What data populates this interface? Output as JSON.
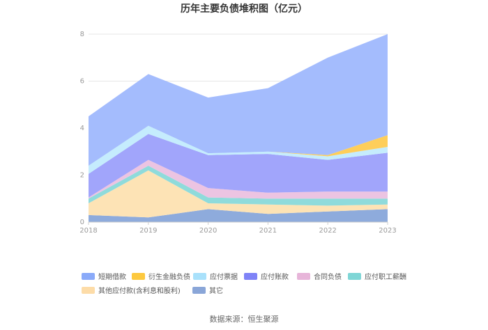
{
  "chart_data": {
    "type": "area",
    "stacked": true,
    "title": "历年主要负债堆积图（亿元）",
    "x": [
      "2018",
      "2019",
      "2020",
      "2021",
      "2022",
      "2023"
    ],
    "ylim": [
      0,
      8
    ],
    "yticks": [
      "0",
      "2",
      "4",
      "6",
      "8"
    ],
    "grid": true,
    "legend_position": "bottom",
    "series": [
      {
        "name": "其它",
        "color": "#8eabdc",
        "values": [
          0.3,
          0.2,
          0.55,
          0.35,
          0.45,
          0.55
        ]
      },
      {
        "name": "其他应付款(含利息和股利)",
        "color": "#fde3b5",
        "values": [
          0.5,
          2.0,
          0.25,
          0.4,
          0.25,
          0.2
        ]
      },
      {
        "name": "应付职工薪酬",
        "color": "#8fdbdb",
        "values": [
          0.2,
          0.2,
          0.25,
          0.25,
          0.3,
          0.25
        ]
      },
      {
        "name": "合同负债",
        "color": "#ecc4e2",
        "values": [
          0.05,
          0.25,
          0.4,
          0.25,
          0.3,
          0.3
        ]
      },
      {
        "name": "应付账款",
        "color": "#a1a5fb",
        "values": [
          1.0,
          1.1,
          1.4,
          1.65,
          1.35,
          1.65
        ]
      },
      {
        "name": "应付票据",
        "color": "#c5ecfd",
        "values": [
          0.35,
          0.35,
          0.08,
          0.1,
          0.15,
          0.25
        ]
      },
      {
        "name": "衍生金融负债",
        "color": "#fece5a",
        "values": [
          0.0,
          0.0,
          0.0,
          0.0,
          0.05,
          0.5
        ]
      },
      {
        "name": "短期借款",
        "color": "#a4bcfd",
        "values": [
          2.1,
          2.2,
          2.37,
          2.7,
          4.15,
          4.3
        ]
      }
    ],
    "legend_order": [
      "短期借款",
      "衍生金融负债",
      "应付票据",
      "应付账款",
      "合同负债",
      "应付职工薪酬",
      "其他应付款(含利息和股利)",
      "其它"
    ],
    "legend_colors": {
      "短期借款": "#8aaaf9",
      "衍生金融负债": "#fdc93f",
      "应付票据": "#a9e1fb",
      "应付账款": "#7f83f7",
      "合同负债": "#e7b5d9",
      "应付职工薪酬": "#7fd6d6",
      "其他应付款(含利息和股利)": "#fddca8",
      "其它": "#8aa6d8"
    }
  },
  "source": "数据来源：恒生聚源"
}
